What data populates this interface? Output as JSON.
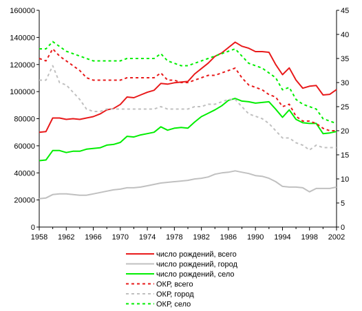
{
  "chart_data": {
    "type": "line",
    "title": "",
    "xlabel": "",
    "ylabel": "",
    "x": [
      1958,
      1959,
      1960,
      1961,
      1962,
      1963,
      1964,
      1965,
      1966,
      1967,
      1968,
      1969,
      1970,
      1971,
      1972,
      1973,
      1974,
      1975,
      1976,
      1977,
      1978,
      1979,
      1980,
      1981,
      1982,
      1983,
      1984,
      1985,
      1986,
      1987,
      1988,
      1989,
      1990,
      1991,
      1992,
      1993,
      1994,
      1995,
      1996,
      1997,
      1998,
      1999,
      2000,
      2001,
      2002
    ],
    "x_ticks": [
      "1958",
      "1962",
      "1966",
      "1970",
      "1974",
      "1978",
      "1982",
      "1986",
      "1990",
      "1994",
      "1998",
      "2002"
    ],
    "x_ticks_minor": [
      "1960",
      "1964",
      "1968",
      "1972",
      "1976",
      "1980",
      "1984",
      "1988",
      "1992",
      "1996",
      "2000"
    ],
    "y_left_ticks": [
      "0",
      "20000",
      "40000",
      "60000",
      "80000",
      "100000",
      "120000",
      "140000",
      "160000"
    ],
    "y_right_ticks": [
      "0",
      "5",
      "10",
      "15",
      "20",
      "25",
      "30",
      "35",
      "40",
      "45"
    ],
    "ylim_left": [
      0,
      160000
    ],
    "ylim_right": [
      0,
      45
    ],
    "grid": false,
    "legend_position": "bottom",
    "series": [
      {
        "name": "число рождений, всего",
        "axis": "left",
        "style": "solid",
        "color": "#e8191a",
        "values": [
          70000,
          70500,
          80500,
          80500,
          79500,
          80000,
          79500,
          80500,
          81500,
          83500,
          86500,
          87500,
          90500,
          96000,
          95500,
          97500,
          99500,
          101000,
          106000,
          105500,
          106500,
          107000,
          107500,
          113000,
          117000,
          121000,
          126000,
          128500,
          132500,
          136500,
          133500,
          132000,
          129500,
          129500,
          129000,
          120000,
          112500,
          117500,
          108500,
          102500,
          104000,
          104500,
          97500,
          98000,
          101500
        ]
      },
      {
        "name": "число рождений, город",
        "axis": "left",
        "style": "solid",
        "color": "#c0c0c0",
        "values": [
          21000,
          21500,
          24000,
          24500,
          24500,
          24000,
          23500,
          23500,
          24500,
          25500,
          26500,
          27500,
          28000,
          29000,
          29000,
          29500,
          30500,
          31500,
          32500,
          33000,
          33500,
          34000,
          34500,
          35500,
          36000,
          37000,
          39000,
          40000,
          40500,
          41500,
          40500,
          39500,
          38000,
          37500,
          36000,
          33500,
          30000,
          29500,
          29500,
          29000,
          26000,
          28500,
          28500,
          28500,
          29500
        ]
      },
      {
        "name": "число рождений, село",
        "axis": "left",
        "style": "solid",
        "color": "#00ee00",
        "values": [
          49000,
          49500,
          56500,
          56500,
          55000,
          56000,
          56000,
          57500,
          58000,
          58500,
          60500,
          61000,
          62500,
          67000,
          66500,
          68000,
          69000,
          70000,
          74000,
          71500,
          73000,
          73500,
          73000,
          77500,
          81500,
          84000,
          86500,
          89500,
          93500,
          95000,
          93000,
          92500,
          91500,
          92000,
          92500,
          87000,
          81000,
          86500,
          79500,
          77000,
          76500,
          76500,
          69000,
          69500,
          70500
        ]
      },
      {
        "name": "ОКР, всего",
        "axis": "right",
        "style": "dashed",
        "color": "#e8191a",
        "values": [
          35.0,
          34.5,
          37.0,
          35.5,
          34.5,
          33.5,
          32.5,
          31.0,
          30.5,
          30.5,
          30.5,
          30.5,
          30.5,
          31.0,
          31.0,
          31.0,
          31.0,
          31.0,
          32.0,
          30.5,
          30.5,
          30.0,
          30.0,
          30.5,
          31.0,
          31.5,
          31.5,
          32.0,
          32.5,
          33.0,
          31.0,
          29.5,
          29.0,
          28.5,
          27.5,
          27.0,
          25.0,
          25.5,
          23.0,
          22.0,
          22.0,
          21.5,
          20.5,
          20.0,
          20.0
        ]
      },
      {
        "name": "ОКР, город",
        "axis": "right",
        "style": "dashed",
        "color": "#c0c0c0",
        "values": [
          30.5,
          30.5,
          33.5,
          30.0,
          29.5,
          28.0,
          26.5,
          24.5,
          24.0,
          24.0,
          24.5,
          24.5,
          24.5,
          24.5,
          24.5,
          24.5,
          24.5,
          24.5,
          25.0,
          24.5,
          24.5,
          24.5,
          24.5,
          25.0,
          25.0,
          25.5,
          25.5,
          26.0,
          26.5,
          26.5,
          25.0,
          23.5,
          23.0,
          22.5,
          21.5,
          20.0,
          18.5,
          18.5,
          17.5,
          17.0,
          16.0,
          17.0,
          16.5,
          16.5,
          16.5
        ]
      },
      {
        "name": "ОКР, село",
        "axis": "right",
        "style": "dashed",
        "color": "#00ee00",
        "values": [
          37.0,
          37.0,
          38.5,
          37.5,
          36.5,
          36.0,
          35.5,
          35.0,
          34.5,
          34.5,
          34.5,
          34.5,
          34.5,
          35.0,
          35.0,
          35.0,
          35.0,
          35.0,
          36.0,
          34.5,
          34.0,
          33.5,
          33.5,
          34.0,
          34.5,
          35.0,
          35.5,
          36.0,
          36.5,
          37.0,
          35.5,
          34.0,
          33.5,
          33.0,
          32.0,
          31.0,
          28.5,
          29.0,
          26.5,
          25.5,
          25.0,
          24.5,
          22.5,
          22.0,
          21.5
        ]
      }
    ]
  }
}
